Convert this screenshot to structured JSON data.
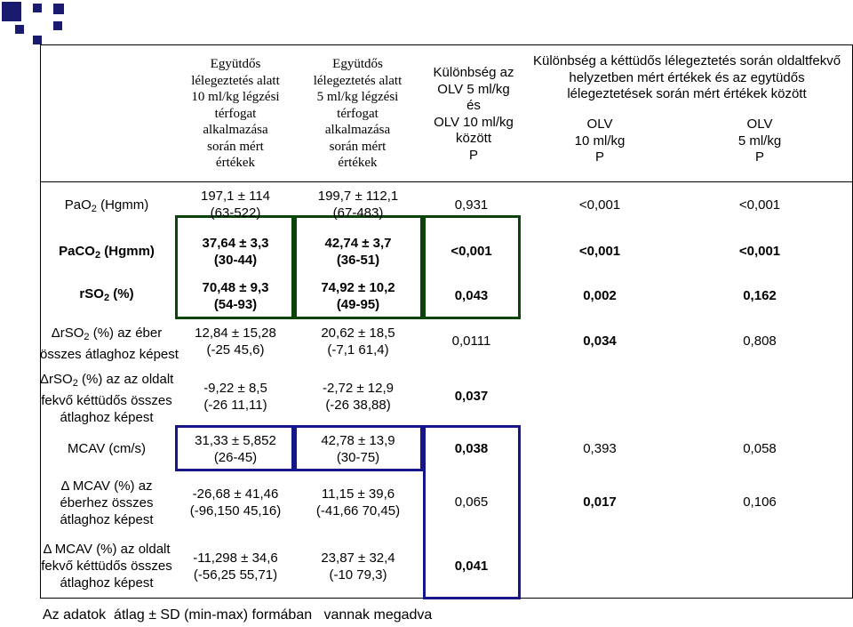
{
  "headers": {
    "col1": [
      "Együtdős",
      "lélegeztetés alatt",
      "10 ml/kg légzési",
      "térfogat",
      "alkalmazása",
      "során mért",
      "értékek"
    ],
    "col2": [
      "Együtdős",
      "lélegeztetés alatt",
      "5 ml/kg légzési",
      "térfogat",
      "alkalmazása",
      "során mért",
      "értékek"
    ],
    "col3": [
      "Különbség az",
      "OLV 5 ml/kg",
      "és",
      "OLV 10 ml/kg",
      "között",
      "P"
    ],
    "col45_title": [
      "Különbség a kéttüdős lélegeztetés során oldaltfekvő",
      "helyzetben mért értékek és az egytüdős",
      "lélegeztetések során mért értékek között"
    ],
    "col4": [
      "OLV",
      "10 ml/kg",
      "P"
    ],
    "col5": [
      "OLV",
      "5 ml/kg",
      "P"
    ]
  },
  "rows": [
    {
      "label": [
        "PaO",
        "2",
        " (Hgmm)"
      ],
      "c1": [
        "197,1 ± 114",
        "(63-522)"
      ],
      "c2": [
        "199,7 ± 112,1",
        "(67-483)"
      ],
      "p1": "0,931",
      "p2": "<0,001",
      "p3": "<0,001"
    },
    {
      "label": [
        "PaCO",
        "2",
        " (Hgmm)"
      ],
      "c1": [
        "37,64 ± 3,3",
        "(30-44)"
      ],
      "c2": [
        "42,74 ± 3,7",
        "(36-51)"
      ],
      "p1": "<0,001",
      "p2": "<0,001",
      "p3": "<0,001"
    },
    {
      "label": [
        "rSO",
        "2",
        " (%)"
      ],
      "c1": [
        "70,48 ± 9,3",
        "(54-93)"
      ],
      "c2": [
        "74,92 ± 10,2",
        "(49-95)"
      ],
      "p1": "0,043",
      "p2": "0,002",
      "p3": "0,162"
    },
    {
      "label": [
        "ΔrSO",
        "2",
        " (%) az éber",
        "összes átlaghoz képest"
      ],
      "c1": [
        "12,84 ± 15,28",
        "(-25  45,6)"
      ],
      "c2": [
        "20,62 ± 18,5",
        "(-7,1  61,4)"
      ],
      "p1": "0,0111",
      "p2": "0,034",
      "p3": "0,808"
    },
    {
      "label": [
        "ΔrSO",
        "2",
        " (%) az az oldalt",
        "fekvő kéttüdős összes",
        "átlaghoz képest"
      ],
      "c1": [
        "-9,22 ± 8,5",
        "(-26  11,11)"
      ],
      "c2": [
        "-2,72 ± 12,9",
        "(-26  38,88)"
      ],
      "p1": "0,037"
    },
    {
      "label": [
        "MCAV (cm/s)"
      ],
      "c1": [
        "31,33 ± 5,852",
        "(26-45)"
      ],
      "c2": [
        "42,78 ± 13,9",
        "(30-75)"
      ],
      "p1": "0,038",
      "p2": "0,393",
      "p3": "0,058"
    },
    {
      "label": [
        "Δ MCAV (%) az",
        "éberhez összes",
        "átlaghoz képest"
      ],
      "c1": [
        "-26,68 ± 41,46",
        "(-96,150  45,16)"
      ],
      "c2": [
        "11,15 ± 39,6",
        "(-41,66  70,45)"
      ],
      "p1": "0,065",
      "p2": "0,017",
      "p3": "0,106"
    },
    {
      "label": [
        "Δ MCAV (%) az oldalt",
        "fekvő kéttüdős összes",
        "átlaghoz képest"
      ],
      "c1": [
        "-11,298 ± 34,6",
        "(-56,25  55,71)"
      ],
      "c2": [
        "23,87 ± 32,4",
        "(-10  79,3)"
      ],
      "p1": "0,041"
    }
  ],
  "footnote": "Az adatok  átlag ± SD (min-max) formában   vannak megadva",
  "colors": {
    "green_box": "#0a440a",
    "navy_box": "#16168a",
    "logo": "#1a1a6e"
  }
}
